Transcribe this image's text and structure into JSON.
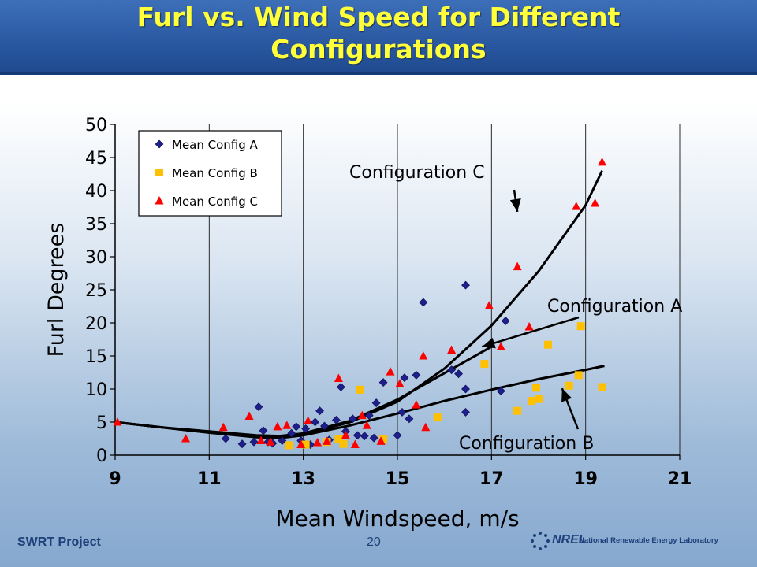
{
  "slide": {
    "title_line1": "Furl vs. Wind Speed for Different",
    "title_line2": "Configurations",
    "footer_left": "SWRT Project",
    "page_number": "20",
    "logo_text": "NREL",
    "logo_subtext": "National Renewable Energy Laboratory",
    "colors": {
      "header": "#2b5aa3",
      "title": "#ffff3a",
      "config_a": "#1f1f8c",
      "config_b": "#ffc000",
      "config_c": "#ff0000"
    }
  },
  "chart_data": {
    "type": "scatter",
    "title": "",
    "xlabel": "Mean Windspeed, m/s",
    "ylabel": "Furl Degrees",
    "xlim": [
      9,
      21
    ],
    "ylim": [
      0,
      50
    ],
    "xticks": [
      9,
      11,
      13,
      15,
      17,
      19,
      21
    ],
    "yticks": [
      0,
      5,
      10,
      15,
      20,
      25,
      30,
      35,
      40,
      45,
      50
    ],
    "grid": "vertical",
    "legend_position": "top-left",
    "series": [
      {
        "name": "Mean Config A",
        "marker": "diamond",
        "color": "#1f1f8c",
        "points": [
          [
            11.35,
            2.5
          ],
          [
            11.7,
            1.7
          ],
          [
            11.95,
            2.0
          ],
          [
            12.05,
            7.3
          ],
          [
            12.15,
            3.7
          ],
          [
            12.25,
            2.0
          ],
          [
            12.35,
            1.8
          ],
          [
            12.55,
            2.2
          ],
          [
            12.75,
            3.3
          ],
          [
            12.85,
            4.3
          ],
          [
            12.95,
            2.2
          ],
          [
            13.05,
            4.0
          ],
          [
            13.15,
            1.6
          ],
          [
            13.25,
            5.0
          ],
          [
            13.35,
            6.7
          ],
          [
            13.45,
            4.4
          ],
          [
            13.55,
            2.3
          ],
          [
            13.7,
            5.3
          ],
          [
            13.8,
            10.3
          ],
          [
            13.9,
            3.6
          ],
          [
            14.05,
            5.5
          ],
          [
            14.15,
            3.0
          ],
          [
            14.3,
            2.9
          ],
          [
            14.4,
            6.0
          ],
          [
            14.5,
            2.6
          ],
          [
            14.55,
            7.9
          ],
          [
            14.7,
            11.0
          ],
          [
            15.0,
            3.0
          ],
          [
            15.1,
            6.5
          ],
          [
            15.15,
            11.7
          ],
          [
            15.25,
            5.5
          ],
          [
            15.4,
            12.1
          ],
          [
            15.55,
            23.1
          ],
          [
            16.15,
            12.9
          ],
          [
            16.3,
            12.3
          ],
          [
            16.45,
            6.5
          ],
          [
            16.45,
            10.0
          ],
          [
            16.45,
            25.7
          ],
          [
            17.2,
            9.7
          ],
          [
            17.3,
            20.3
          ]
        ]
      },
      {
        "name": "Mean Config B",
        "marker": "square",
        "color": "#ffc000",
        "points": [
          [
            12.7,
            1.5
          ],
          [
            13.05,
            1.6
          ],
          [
            13.5,
            2.0
          ],
          [
            13.75,
            2.5
          ],
          [
            13.85,
            1.7
          ],
          [
            14.2,
            9.9
          ],
          [
            14.7,
            2.5
          ],
          [
            15.85,
            5.7
          ],
          [
            16.85,
            13.8
          ],
          [
            17.55,
            6.7
          ],
          [
            17.85,
            8.2
          ],
          [
            17.95,
            10.2
          ],
          [
            18.0,
            8.5
          ],
          [
            18.2,
            16.7
          ],
          [
            18.65,
            10.5
          ],
          [
            18.85,
            12.1
          ],
          [
            18.9,
            19.5
          ],
          [
            19.35,
            10.3
          ]
        ]
      },
      {
        "name": "Mean Config C",
        "marker": "triangle",
        "color": "#ff0000",
        "points": [
          [
            9.05,
            5.0
          ],
          [
            10.5,
            2.5
          ],
          [
            11.3,
            4.2
          ],
          [
            11.85,
            5.9
          ],
          [
            12.1,
            2.2
          ],
          [
            12.3,
            2.0
          ],
          [
            12.45,
            4.3
          ],
          [
            12.65,
            4.5
          ],
          [
            12.95,
            1.6
          ],
          [
            13.1,
            5.2
          ],
          [
            13.3,
            1.9
          ],
          [
            13.5,
            2.1
          ],
          [
            13.75,
            11.6
          ],
          [
            13.9,
            3.0
          ],
          [
            14.1,
            1.6
          ],
          [
            14.25,
            6.0
          ],
          [
            14.35,
            4.5
          ],
          [
            14.65,
            2.1
          ],
          [
            14.85,
            12.6
          ],
          [
            15.05,
            10.8
          ],
          [
            15.4,
            7.6
          ],
          [
            15.55,
            15.0
          ],
          [
            15.6,
            4.2
          ],
          [
            16.15,
            15.9
          ],
          [
            16.95,
            22.6
          ],
          [
            17.2,
            16.4
          ],
          [
            17.55,
            28.5
          ],
          [
            17.8,
            19.4
          ],
          [
            18.8,
            37.6
          ],
          [
            19.2,
            38.1
          ],
          [
            19.35,
            44.3
          ]
        ]
      }
    ],
    "trendlines": [
      {
        "name": "Configuration A",
        "points": [
          [
            9.0,
            5.0
          ],
          [
            10.0,
            4.2
          ],
          [
            11.0,
            3.6
          ],
          [
            12.0,
            3.0
          ],
          [
            12.5,
            2.9
          ],
          [
            13.0,
            3.3
          ],
          [
            14.0,
            5.2
          ],
          [
            15.0,
            8.4
          ],
          [
            16.0,
            12.4
          ],
          [
            17.0,
            16.4
          ]
        ]
      },
      {
        "name": "Configuration B",
        "points": [
          [
            9.0,
            5.0
          ],
          [
            10.0,
            4.2
          ],
          [
            11.0,
            3.4
          ],
          [
            12.0,
            2.8
          ],
          [
            12.5,
            2.6
          ],
          [
            13.0,
            3.0
          ],
          [
            14.0,
            4.5
          ],
          [
            15.0,
            6.3
          ],
          [
            16.0,
            8.2
          ],
          [
            17.0,
            9.9
          ],
          [
            18.0,
            11.5
          ],
          [
            19.0,
            12.9
          ],
          [
            19.4,
            13.5
          ]
        ]
      },
      {
        "name": "Configuration C",
        "points": [
          [
            9.0,
            5.0
          ],
          [
            10.0,
            4.2
          ],
          [
            11.0,
            3.4
          ],
          [
            12.0,
            2.7
          ],
          [
            12.5,
            2.6
          ],
          [
            13.0,
            3.1
          ],
          [
            14.0,
            5.0
          ],
          [
            15.0,
            8.1
          ],
          [
            16.0,
            13.1
          ],
          [
            17.0,
            19.6
          ],
          [
            18.0,
            27.8
          ],
          [
            19.0,
            37.8
          ],
          [
            19.35,
            43.0
          ]
        ]
      }
    ],
    "annotations": [
      {
        "text": "Configuration C",
        "target": [
          17.55,
          36.8
        ]
      },
      {
        "text": "Configuration A",
        "target": [
          16.8,
          16.4
        ]
      },
      {
        "text": "Configuration B",
        "target": [
          18.5,
          10.1
        ]
      }
    ]
  }
}
